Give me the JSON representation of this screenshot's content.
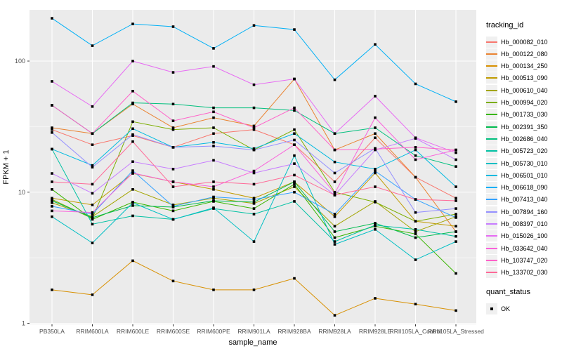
{
  "figure": {
    "background": "#ffffff",
    "panel_background": "#ebebeb",
    "grid_color": "#ffffff",
    "tick_label_color": "#4d4d4d",
    "axis_title_color": "#000000",
    "point_color": "#000000"
  },
  "axes": {
    "x_title": "sample_name",
    "y_title": "FPKM + 1",
    "y_tick_labels": [
      "1",
      "10",
      "100"
    ],
    "y_tick_values": [
      1,
      10,
      100
    ]
  },
  "legend": {
    "color_title": "tracking_id",
    "shape_title": "quant_status",
    "shape_items": [
      {
        "label": "OK"
      }
    ]
  },
  "chart_data": {
    "type": "line",
    "x_label": "sample_name",
    "y_label": "FPKM + 1",
    "y_scale": "log10",
    "ylim": [
      1,
      250
    ],
    "grid": true,
    "legend_position": "right",
    "x_categories": [
      "PB350LA",
      "RRIM600LA",
      "RRIM600LE",
      "RRIM600SE",
      "RRIM600PE",
      "RRIM901LA",
      "RRIM928BA",
      "RRIM928LA",
      "RRIM928LE",
      "RRII105LA_Control",
      "RRII105LA_Stressed"
    ],
    "series": [
      {
        "name": "Hb_000082_010",
        "color": "#F8766D",
        "values": [
          30,
          23,
          27,
          22,
          28,
          30,
          23,
          12,
          26,
          13,
          9
        ]
      },
      {
        "name": "Hb_000122_080",
        "color": "#EA8331",
        "values": [
          31,
          28,
          47,
          31,
          37,
          32,
          73,
          21,
          28,
          13,
          5
        ]
      },
      {
        "name": "Hb_000134_250",
        "color": "#D89000",
        "values": [
          1.8,
          1.65,
          3.0,
          2.1,
          1.8,
          1.8,
          2.2,
          1.15,
          1.55,
          1.4,
          1.25
        ]
      },
      {
        "name": "Hb_000513_090",
        "color": "#C09B00",
        "values": [
          9.0,
          8.0,
          13.9,
          12,
          10.5,
          9,
          12,
          6.5,
          14,
          6,
          5.5
        ]
      },
      {
        "name": "Hb_000610_040",
        "color": "#A3A500",
        "values": [
          8.3,
          6.5,
          10.5,
          8,
          9,
          8.2,
          11,
          5.5,
          8.5,
          5,
          6.5
        ]
      },
      {
        "name": "Hb_000994_020",
        "color": "#7CAE00",
        "values": [
          8.8,
          6.3,
          34.5,
          30,
          31,
          21,
          30,
          10,
          8.4,
          6,
          6.8
        ]
      },
      {
        "name": "Hb_001733_030",
        "color": "#39B600",
        "values": [
          10.5,
          6.2,
          8.4,
          7.2,
          8.5,
          7.5,
          11.5,
          4.5,
          5.5,
          4.8,
          2.4
        ]
      },
      {
        "name": "Hb_002391_350",
        "color": "#00BB4E",
        "values": [
          8.6,
          6.4,
          7.9,
          7.7,
          8.6,
          8.4,
          12,
          5,
          5.8,
          4.5,
          5
        ]
      },
      {
        "name": "Hb_002686_040",
        "color": "#00BF7D",
        "values": [
          46,
          28,
          48,
          47,
          44,
          44,
          42,
          28,
          31,
          19,
          15.7
        ]
      },
      {
        "name": "Hb_005723_020",
        "color": "#00C1A3",
        "values": [
          21.3,
          5.7,
          6.6,
          6.2,
          7.5,
          6.8,
          8.5,
          4.2,
          5.6,
          5.2,
          4.6
        ]
      },
      {
        "name": "Hb_005730_010",
        "color": "#00BFC4",
        "values": [
          6.5,
          4.1,
          8.3,
          6.2,
          7.6,
          4.2,
          19,
          4.0,
          5.2,
          3.05,
          4.2
        ]
      },
      {
        "name": "Hb_006501_010",
        "color": "#00BAE0",
        "values": [
          21.3,
          16,
          30.5,
          22,
          24,
          21.5,
          28,
          17,
          15,
          21,
          11
        ]
      },
      {
        "name": "Hb_006618_090",
        "color": "#00B0F6",
        "values": [
          212,
          131,
          192,
          183,
          125,
          187,
          174,
          72,
          134,
          67,
          49
        ]
      },
      {
        "name": "Hb_007413_040",
        "color": "#35A2FF",
        "values": [
          7.8,
          6.8,
          14.6,
          7.8,
          9.2,
          8.8,
          10,
          6.8,
          14.5,
          8.8,
          6.4
        ]
      },
      {
        "name": "Hb_007894_160",
        "color": "#9590FF",
        "values": [
          28.5,
          15.5,
          27.5,
          22,
          22.5,
          21,
          25,
          14,
          21.6,
          7,
          7.5
        ]
      },
      {
        "name": "Hb_008397_010",
        "color": "#C77CFF",
        "values": [
          13.9,
          9.8,
          17.1,
          15,
          17.5,
          14,
          16.5,
          9.5,
          21,
          25.7,
          17.7
        ]
      },
      {
        "name": "Hb_015026_100",
        "color": "#E76BF3",
        "values": [
          70,
          45,
          100,
          82,
          91,
          66,
          73,
          28,
          54,
          26,
          20
        ]
      },
      {
        "name": "Hb_033642_040",
        "color": "#FA62DB",
        "values": [
          7.2,
          7.0,
          14,
          12,
          11,
          14.5,
          23,
          9.8,
          37,
          17.7,
          21
        ]
      },
      {
        "name": "Hb_103747_020",
        "color": "#FF61C9",
        "values": [
          46,
          28,
          59,
          35,
          41,
          31,
          44,
          21,
          21.3,
          22,
          21
        ]
      },
      {
        "name": "Hb_133702_030",
        "color": "#FF6A98",
        "values": [
          12,
          11.5,
          24.3,
          11,
          12,
          11.5,
          13.5,
          9.5,
          11,
          8.8,
          8.6
        ]
      }
    ],
    "point_shape": "filled-square",
    "point_legend": {
      "title": "quant_status",
      "items": [
        "OK"
      ]
    }
  }
}
